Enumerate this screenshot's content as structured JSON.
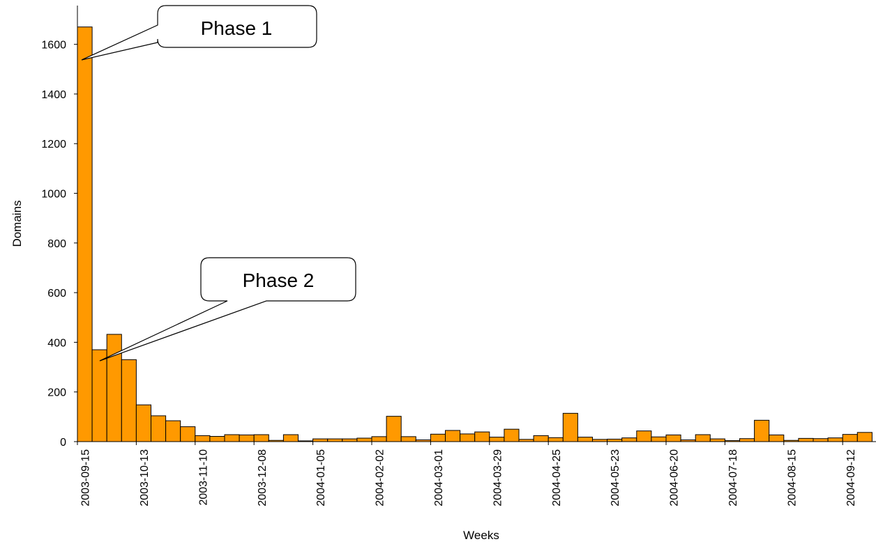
{
  "chart_data": {
    "type": "bar",
    "xlabel": "Weeks",
    "ylabel": "Domains",
    "ylim": [
      0,
      1700
    ],
    "yticks": [
      0,
      200,
      400,
      600,
      800,
      1000,
      1200,
      1400,
      1600
    ],
    "bar_color": "#ff9900",
    "categories": [
      "2003-09-15",
      "2003-09-22",
      "2003-09-29",
      "2003-10-06",
      "2003-10-13",
      "2003-10-20",
      "2003-10-27",
      "2003-11-03",
      "2003-11-10",
      "2003-11-17",
      "2003-11-24",
      "2003-12-01",
      "2003-12-08",
      "2003-12-15",
      "2003-12-22",
      "2003-12-29",
      "2004-01-05",
      "2004-01-12",
      "2004-01-19",
      "2004-01-26",
      "2004-02-02",
      "2004-02-09",
      "2004-02-16",
      "2004-02-23",
      "2004-03-01",
      "2004-03-08",
      "2004-03-15",
      "2004-03-22",
      "2004-03-29",
      "2004-04-05",
      "2004-04-12",
      "2004-04-19",
      "2004-04-25",
      "2004-05-02",
      "2004-05-09",
      "2004-05-16",
      "2004-05-23",
      "2004-05-30",
      "2004-06-06",
      "2004-06-13",
      "2004-06-20",
      "2004-06-27",
      "2004-07-04",
      "2004-07-11",
      "2004-07-18",
      "2004-07-25",
      "2004-08-01",
      "2004-08-08",
      "2004-08-15",
      "2004-08-22",
      "2004-08-29",
      "2004-09-05",
      "2004-09-12",
      "2004-09-19"
    ],
    "labeled_ticks": [
      "2003-09-15",
      "2003-10-13",
      "2003-11-10",
      "2003-12-08",
      "2004-01-05",
      "2004-02-02",
      "2004-03-01",
      "2004-03-29",
      "2004-04-25",
      "2004-05-23",
      "2004-06-20",
      "2004-07-18",
      "2004-08-15",
      "2004-09-12"
    ],
    "values": [
      1670,
      370,
      432,
      330,
      148,
      104,
      84,
      60,
      24,
      21,
      28,
      27,
      28,
      5,
      28,
      3,
      11,
      11,
      11,
      14,
      20,
      102,
      20,
      7,
      30,
      45,
      31,
      39,
      18,
      50,
      9,
      24,
      16,
      114,
      18,
      9,
      10,
      15,
      43,
      19,
      27,
      7,
      28,
      11,
      4,
      12,
      86,
      27,
      5,
      13,
      12,
      15,
      29,
      37
    ],
    "annotations": [
      {
        "text": "Phase 1",
        "category": "2003-09-15",
        "value": 1490
      },
      {
        "text": "Phase 2",
        "category": "2003-09-22",
        "value": 315
      }
    ]
  }
}
